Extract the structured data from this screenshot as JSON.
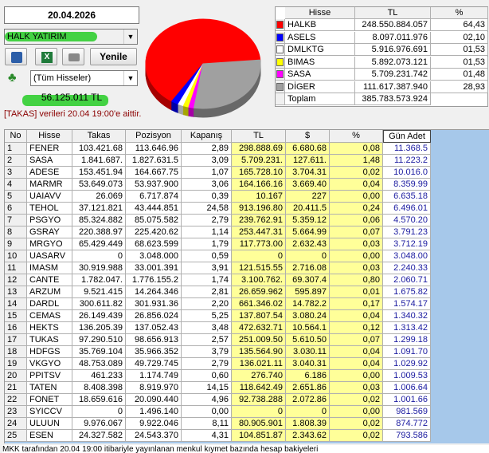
{
  "header": {
    "date": "20.04.2026",
    "broker": "HALK YATIRIM",
    "refresh": "Yenile",
    "filter": "(Tüm Hisseler)",
    "total": "56.125.011 TL",
    "note": "[TAKAS] verileri 20.04 19:00'e aittir."
  },
  "summary": {
    "columns": [
      "Hisse",
      "TL",
      "%"
    ],
    "rows": [
      {
        "name": "HALKB",
        "tl": "248.550.884.057",
        "pct": "64,43",
        "color": "#ff0000"
      },
      {
        "name": "ASELS",
        "tl": "8.097.011.976",
        "pct": "02,10",
        "color": "#0000ff"
      },
      {
        "name": "DMLKTG",
        "tl": "5.916.976.691",
        "pct": "01,53",
        "color": "#ffffff"
      },
      {
        "name": "BIMAS",
        "tl": "5.892.073.121",
        "pct": "01,53",
        "color": "#ffff00"
      },
      {
        "name": "SASA",
        "tl": "5.709.231.742",
        "pct": "01,48",
        "color": "#ff00ff"
      },
      {
        "name": "DİGER",
        "tl": "111.617.387.940",
        "pct": "28,93",
        "color": "#a0a0a0"
      },
      {
        "name": "Toplam",
        "tl": "385.783.573.924"
      }
    ]
  },
  "table": {
    "columns": [
      "No",
      "Hisse",
      "Takas",
      "Pozisyon",
      "Kapanış",
      "TL",
      "$",
      "%",
      "Gün Adet"
    ],
    "rows": [
      [
        "1",
        "FENER",
        "103.421.68",
        "113.646.96",
        "2,89",
        "298.888.69",
        "6.680.68",
        "0,08",
        "11.368.5"
      ],
      [
        "2",
        "SASA",
        "1.841.687.",
        "1.827.631.5",
        "3,09",
        "5.709.231.",
        "127.611.",
        "1,48",
        "11.223.2"
      ],
      [
        "3",
        "ADESE",
        "153.451.94",
        "164.667.75",
        "1,07",
        "165.728.10",
        "3.704.31",
        "0,02",
        "10.016.0"
      ],
      [
        "4",
        "MARMR",
        "53.649.073",
        "53.937.900",
        "3,06",
        "164.166.16",
        "3.669.40",
        "0,04",
        "8.359.99"
      ],
      [
        "5",
        "UAIAVV",
        "26.069",
        "6.717.874",
        "0,39",
        "10.167",
        "227",
        "0,00",
        "6.635.18"
      ],
      [
        "6",
        "TEHOL",
        "37.121.821",
        "43.444.851",
        "24,58",
        "913.196.80",
        "20.411.5",
        "0,24",
        "6.496.01"
      ],
      [
        "7",
        "PSGYO",
        "85.324.882",
        "85.075.582",
        "2,79",
        "239.762.91",
        "5.359.12",
        "0,06",
        "4.570.20"
      ],
      [
        "8",
        "GSRAY",
        "220.388.97",
        "225.420.62",
        "1,14",
        "253.447.31",
        "5.664.99",
        "0,07",
        "3.791.23"
      ],
      [
        "9",
        "MRGYO",
        "65.429.449",
        "68.623.599",
        "1,79",
        "117.773.00",
        "2.632.43",
        "0,03",
        "3.712.19"
      ],
      [
        "10",
        "UASARV",
        "0",
        "3.048.000",
        "0,59",
        "0",
        "0",
        "0,00",
        "3.048.00"
      ],
      [
        "11",
        "IMASM",
        "30.919.988",
        "33.001.391",
        "3,91",
        "121.515.55",
        "2.716.08",
        "0,03",
        "2.240.33"
      ],
      [
        "12",
        "CANTE",
        "1.782.047.",
        "1.776.155.2",
        "1,74",
        "3.100.762.",
        "69.307.4",
        "0,80",
        "2.060.71"
      ],
      [
        "13",
        "ARZUM",
        "9.521.415",
        "14.264.346",
        "2,81",
        "26.659.962",
        "595.897",
        "0,01",
        "1.675.82"
      ],
      [
        "14",
        "DARDL",
        "300.611.82",
        "301.931.36",
        "2,20",
        "661.346.02",
        "14.782.2",
        "0,17",
        "1.574.17"
      ],
      [
        "15",
        "CEMAS",
        "26.149.439",
        "26.856.024",
        "5,25",
        "137.807.54",
        "3.080.24",
        "0,04",
        "1.340.32"
      ],
      [
        "16",
        "HEKTS",
        "136.205.39",
        "137.052.43",
        "3,48",
        "472.632.71",
        "10.564.1",
        "0,12",
        "1.313.42"
      ],
      [
        "17",
        "TUKAS",
        "97.290.510",
        "98.656.913",
        "2,57",
        "251.009.50",
        "5.610.50",
        "0,07",
        "1.299.18"
      ],
      [
        "18",
        "HDFGS",
        "35.769.104",
        "35.966.352",
        "3,79",
        "135.564.90",
        "3.030.11",
        "0,04",
        "1.091.70"
      ],
      [
        "19",
        "VKGYO",
        "48.753.089",
        "49.729.745",
        "2,79",
        "136.021.11",
        "3.040.31",
        "0,04",
        "1.029.92"
      ],
      [
        "20",
        "PPITSV",
        "461.233",
        "1.174.749",
        "0,60",
        "276.740",
        "6.186",
        "0,00",
        "1.009.53"
      ],
      [
        "21",
        "TATEN",
        "8.408.398",
        "8.919.970",
        "14,15",
        "118.642.49",
        "2.651.86",
        "0,03",
        "1.006.64"
      ],
      [
        "22",
        "FONET",
        "18.659.616",
        "20.090.440",
        "4,96",
        "92.738.288",
        "2.072.86",
        "0,02",
        "1.001.66"
      ],
      [
        "23",
        "SYICCV",
        "0",
        "1.496.140",
        "0,00",
        "0",
        "0",
        "0,00",
        "981.569"
      ],
      [
        "24",
        "ULUUN",
        "9.976.067",
        "9.922.046",
        "8,11",
        "80.905.901",
        "1.808.39",
        "0,02",
        "874.772"
      ],
      [
        "25",
        "ESEN",
        "24.327.582",
        "24.543.370",
        "4,31",
        "104.851.87",
        "2.343.62",
        "0,02",
        "793.586"
      ]
    ]
  },
  "footer": "MKK tarafından 20.04 19:00 itibariyle yayınlanan menkul kıymet bazında hesap bakiyeleri"
}
